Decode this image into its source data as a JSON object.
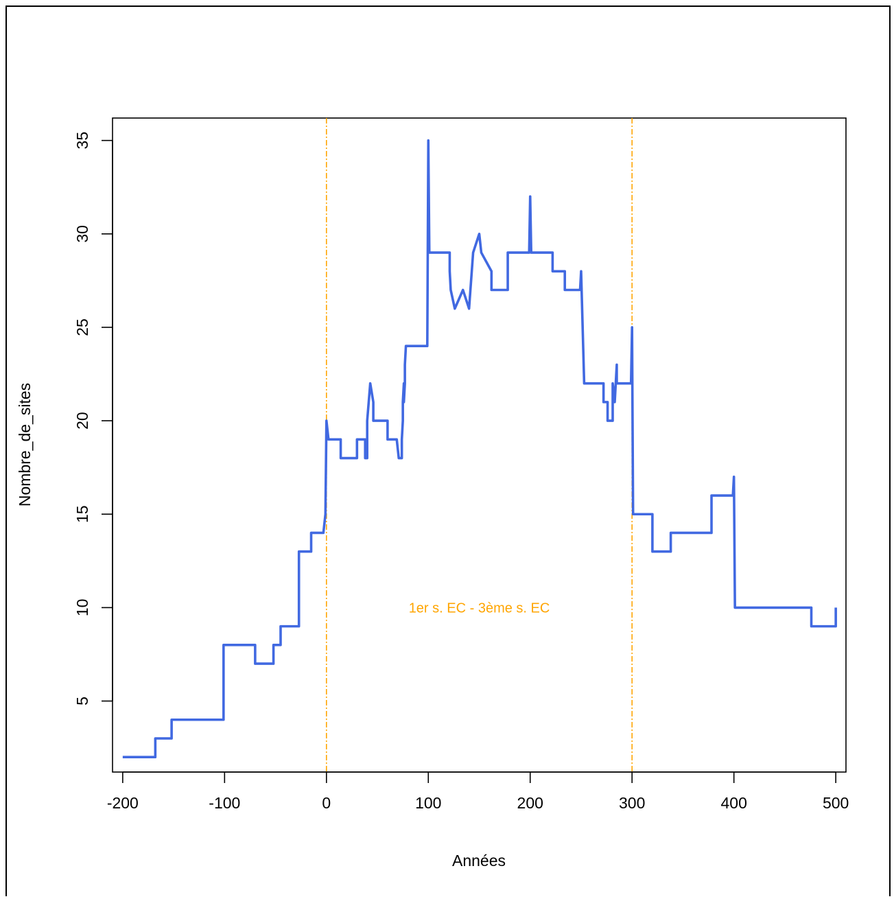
{
  "chart_data": {
    "type": "line",
    "title": "",
    "xlabel": "Années",
    "ylabel": "Nombre_de_sites",
    "xlim": [
      -210,
      510
    ],
    "ylim": [
      1.2,
      36.2
    ],
    "x_ticks": [
      -200,
      -100,
      0,
      100,
      200,
      300,
      400,
      500
    ],
    "y_ticks": [
      5,
      10,
      15,
      20,
      25,
      30,
      35
    ],
    "grid": false,
    "line_color": "#4169E1",
    "series": [
      {
        "x": [
          -200,
          -168,
          -168,
          -152,
          -152,
          -101,
          -101,
          -70,
          -70,
          -52,
          -52,
          -45,
          -45,
          -40,
          -40,
          -27,
          -27,
          -15,
          -15,
          -3,
          -3,
          -1,
          -1,
          0,
          0,
          2,
          2,
          14,
          14,
          30,
          30,
          38,
          38,
          40,
          40,
          43,
          43,
          46,
          46,
          53,
          53,
          60,
          60,
          69,
          69,
          71,
          71,
          74,
          74,
          75,
          75,
          76,
          76,
          77,
          77,
          78,
          78,
          80,
          80,
          99,
          99,
          100,
          100,
          101,
          101,
          121,
          121,
          122,
          122,
          126,
          126,
          134,
          134,
          140,
          140,
          144,
          144,
          150,
          150,
          152,
          152,
          162,
          162,
          167,
          167,
          178,
          178,
          199,
          199,
          200,
          200,
          201,
          201,
          222,
          222,
          234,
          234,
          249,
          249,
          250,
          250,
          253,
          253,
          272,
          272,
          276,
          276,
          281,
          281,
          283,
          283,
          285,
          285,
          299,
          299,
          300,
          300,
          301,
          301,
          320,
          320,
          338,
          338,
          378,
          378,
          399,
          399,
          400,
          400,
          401,
          401,
          476,
          476,
          500,
          500
        ],
        "y": [
          2,
          2,
          3,
          3,
          4,
          4,
          8,
          8,
          7,
          7,
          8,
          8,
          9,
          9,
          9,
          9,
          13,
          13,
          14,
          14,
          14,
          15,
          15,
          20,
          20,
          19,
          19,
          19,
          18,
          18,
          19,
          19,
          18,
          18,
          20,
          22,
          22,
          21,
          20,
          20,
          20,
          20,
          19,
          19,
          19,
          18,
          18,
          18,
          19,
          20,
          21,
          22,
          21,
          22,
          23,
          24,
          24,
          24,
          24,
          24,
          24,
          35,
          35,
          29,
          29,
          29,
          28,
          27,
          27,
          26,
          26,
          27,
          27,
          26,
          26,
          29,
          29,
          30,
          30,
          29,
          29,
          28,
          27,
          27,
          27,
          27,
          29,
          29,
          29,
          32,
          32,
          29,
          29,
          29,
          28,
          28,
          27,
          27,
          27,
          28,
          28,
          22,
          22,
          22,
          21,
          21,
          20,
          20,
          22,
          21,
          21,
          23,
          22,
          22,
          22,
          25,
          25,
          15,
          15,
          15,
          13,
          13,
          14,
          14,
          16,
          16,
          16,
          17,
          17,
          10,
          10,
          10,
          9,
          9,
          10
        ]
      }
    ],
    "vlines": [
      0,
      300
    ],
    "vline_color": "#FFA500",
    "annotations": [
      {
        "text": "1er s. EC - 3ème s. EC",
        "x": 150,
        "y": 10
      }
    ]
  }
}
